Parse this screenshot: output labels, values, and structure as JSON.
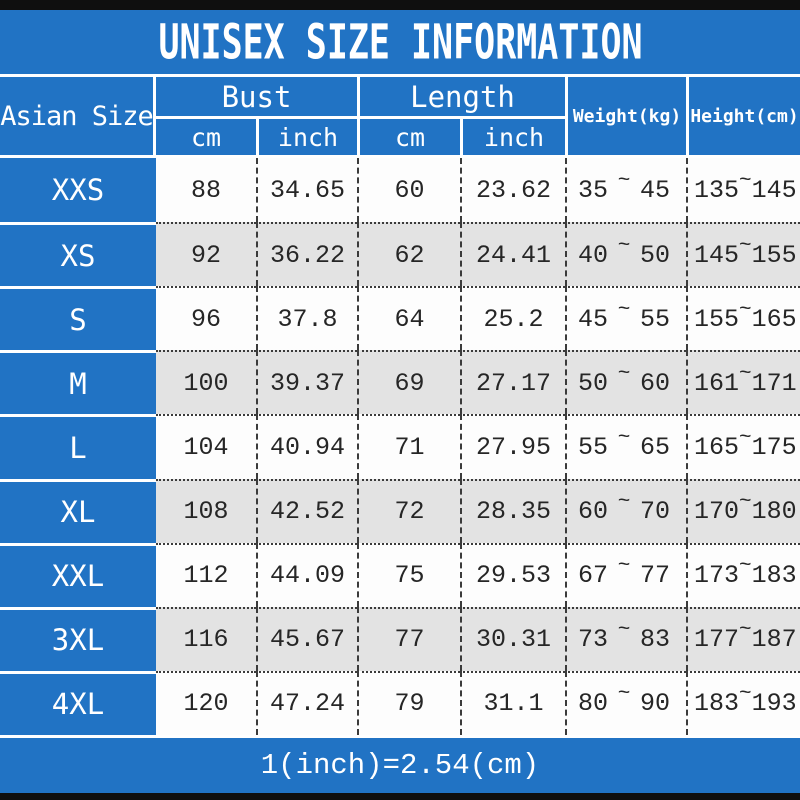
{
  "title": "UNISEX SIZE INFORMATION",
  "footer_note": "1(inch)=2.54(cm)",
  "colors": {
    "blue": "#2173c4",
    "row": "#fdfdfd",
    "row_alt": "#e3e3e3",
    "bar": "#0f0f0f",
    "text_dark": "#262626"
  },
  "table": {
    "columns": {
      "size_label": "Asian Size",
      "bust_label": "Bust",
      "length_label": "Length",
      "bust_cm": "cm",
      "bust_inch": "inch",
      "length_cm": "cm",
      "length_inch": "inch",
      "weight_label": "Weight(kg)",
      "height_label": "Height(cm)",
      "range_separator": "~"
    },
    "rows": [
      {
        "size": "XXS",
        "bust_cm": "88",
        "bust_inch": "34.65",
        "length_cm": "60",
        "length_inch": "23.62",
        "weight_min": "35",
        "weight_max": "45",
        "height_min": "135",
        "height_max": "145"
      },
      {
        "size": "XS",
        "bust_cm": "92",
        "bust_inch": "36.22",
        "length_cm": "62",
        "length_inch": "24.41",
        "weight_min": "40",
        "weight_max": "50",
        "height_min": "145",
        "height_max": "155"
      },
      {
        "size": "S",
        "bust_cm": "96",
        "bust_inch": "37.8",
        "length_cm": "64",
        "length_inch": "25.2",
        "weight_min": "45",
        "weight_max": "55",
        "height_min": "155",
        "height_max": "165"
      },
      {
        "size": "M",
        "bust_cm": "100",
        "bust_inch": "39.37",
        "length_cm": "69",
        "length_inch": "27.17",
        "weight_min": "50",
        "weight_max": "60",
        "height_min": "161",
        "height_max": "171"
      },
      {
        "size": "L",
        "bust_cm": "104",
        "bust_inch": "40.94",
        "length_cm": "71",
        "length_inch": "27.95",
        "weight_min": "55",
        "weight_max": "65",
        "height_min": "165",
        "height_max": "175"
      },
      {
        "size": "XL",
        "bust_cm": "108",
        "bust_inch": "42.52",
        "length_cm": "72",
        "length_inch": "28.35",
        "weight_min": "60",
        "weight_max": "70",
        "height_min": "170",
        "height_max": "180"
      },
      {
        "size": "XXL",
        "bust_cm": "112",
        "bust_inch": "44.09",
        "length_cm": "75",
        "length_inch": "29.53",
        "weight_min": "67",
        "weight_max": "77",
        "height_min": "173",
        "height_max": "183"
      },
      {
        "size": "3XL",
        "bust_cm": "116",
        "bust_inch": "45.67",
        "length_cm": "77",
        "length_inch": "30.31",
        "weight_min": "73",
        "weight_max": "83",
        "height_min": "177",
        "height_max": "187"
      },
      {
        "size": "4XL",
        "bust_cm": "120",
        "bust_inch": "47.24",
        "length_cm": "79",
        "length_inch": "31.1",
        "weight_min": "80",
        "weight_max": "90",
        "height_min": "183",
        "height_max": "193"
      }
    ]
  }
}
